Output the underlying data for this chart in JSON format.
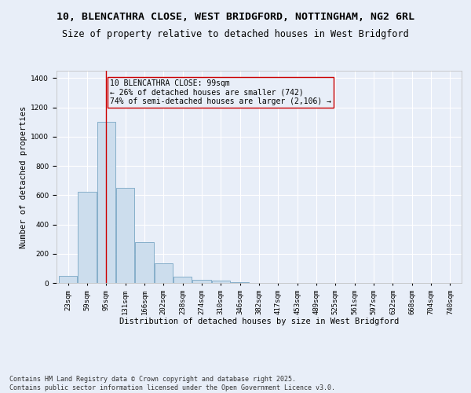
{
  "title_line1": "10, BLENCATHRA CLOSE, WEST BRIDGFORD, NOTTINGHAM, NG2 6RL",
  "title_line2": "Size of property relative to detached houses in West Bridgford",
  "xlabel": "Distribution of detached houses by size in West Bridgford",
  "ylabel": "Number of detached properties",
  "categories": [
    "23sqm",
    "59sqm",
    "95sqm",
    "131sqm",
    "166sqm",
    "202sqm",
    "238sqm",
    "274sqm",
    "310sqm",
    "346sqm",
    "382sqm",
    "417sqm",
    "453sqm",
    "489sqm",
    "525sqm",
    "561sqm",
    "597sqm",
    "632sqm",
    "668sqm",
    "704sqm",
    "740sqm"
  ],
  "values": [
    50,
    625,
    1100,
    650,
    280,
    135,
    45,
    20,
    15,
    5,
    0,
    0,
    0,
    0,
    0,
    0,
    0,
    0,
    0,
    0,
    0
  ],
  "bar_color": "#ccdded",
  "bar_edge_color": "#6699bb",
  "vline_x": 2,
  "vline_color": "#cc0000",
  "annotation_text": "10 BLENCATHRA CLOSE: 99sqm\n← 26% of detached houses are smaller (742)\n74% of semi-detached houses are larger (2,106) →",
  "annotation_box_color": "#cc0000",
  "background_color": "#e8eef8",
  "grid_color": "#ffffff",
  "ylim": [
    0,
    1450
  ],
  "yticks": [
    0,
    200,
    400,
    600,
    800,
    1000,
    1200,
    1400
  ],
  "footer_line1": "Contains HM Land Registry data © Crown copyright and database right 2025.",
  "footer_line2": "Contains public sector information licensed under the Open Government Licence v3.0.",
  "title_fontsize": 9.5,
  "subtitle_fontsize": 8.5,
  "xlabel_fontsize": 7.5,
  "ylabel_fontsize": 7.5,
  "tick_fontsize": 6.5,
  "annotation_fontsize": 7,
  "footer_fontsize": 6
}
